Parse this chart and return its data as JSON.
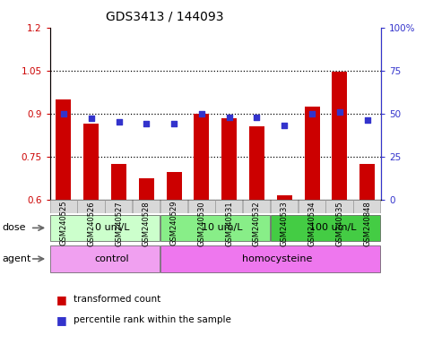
{
  "title": "GDS3413 / 144093",
  "samples": [
    "GSM240525",
    "GSM240526",
    "GSM240527",
    "GSM240528",
    "GSM240529",
    "GSM240530",
    "GSM240531",
    "GSM240532",
    "GSM240533",
    "GSM240534",
    "GSM240535",
    "GSM240848"
  ],
  "transformed_count": [
    0.95,
    0.865,
    0.725,
    0.675,
    0.695,
    0.9,
    0.885,
    0.855,
    0.615,
    0.925,
    1.045,
    0.725
  ],
  "percentile_rank": [
    50,
    47,
    45,
    44,
    44,
    50,
    48,
    48,
    43,
    50,
    51,
    46
  ],
  "ylim_left": [
    0.6,
    1.2
  ],
  "ylim_right": [
    0,
    100
  ],
  "yticks_left": [
    0.6,
    0.75,
    0.9,
    1.05,
    1.2
  ],
  "yticks_left_labels": [
    "0.6",
    "0.75",
    "0.9",
    "1.05",
    "1.2"
  ],
  "yticks_right": [
    0,
    25,
    50,
    75,
    100
  ],
  "yticks_right_labels": [
    "0",
    "25",
    "50",
    "75",
    "100%"
  ],
  "hlines": [
    0.75,
    0.9,
    1.05
  ],
  "bar_color": "#cc0000",
  "dot_color": "#3333cc",
  "bar_bottom": 0.6,
  "dose_groups": [
    {
      "label": "0 um/L",
      "start": 0,
      "end": 4,
      "color": "#ccffcc"
    },
    {
      "label": "10 um/L",
      "start": 4,
      "end": 8,
      "color": "#66ee66"
    },
    {
      "label": "100 um/L",
      "start": 8,
      "end": 12,
      "color": "#33cc33"
    }
  ],
  "agent_groups": [
    {
      "label": "control",
      "start": 0,
      "end": 4,
      "color": "#ee88ee"
    },
    {
      "label": "homocysteine",
      "start": 4,
      "end": 12,
      "color": "#dd66dd"
    }
  ],
  "dose_label": "dose",
  "agent_label": "agent",
  "legend_items": [
    {
      "color": "#cc0000",
      "label": "transformed count"
    },
    {
      "color": "#3333cc",
      "label": "percentile rank within the sample"
    }
  ],
  "bar_width": 0.55,
  "xticklabel_bg": "#d8d8d8",
  "title_fontsize": 10,
  "tick_fontsize": 7.5,
  "row_label_fontsize": 8,
  "legend_fontsize": 7.5
}
